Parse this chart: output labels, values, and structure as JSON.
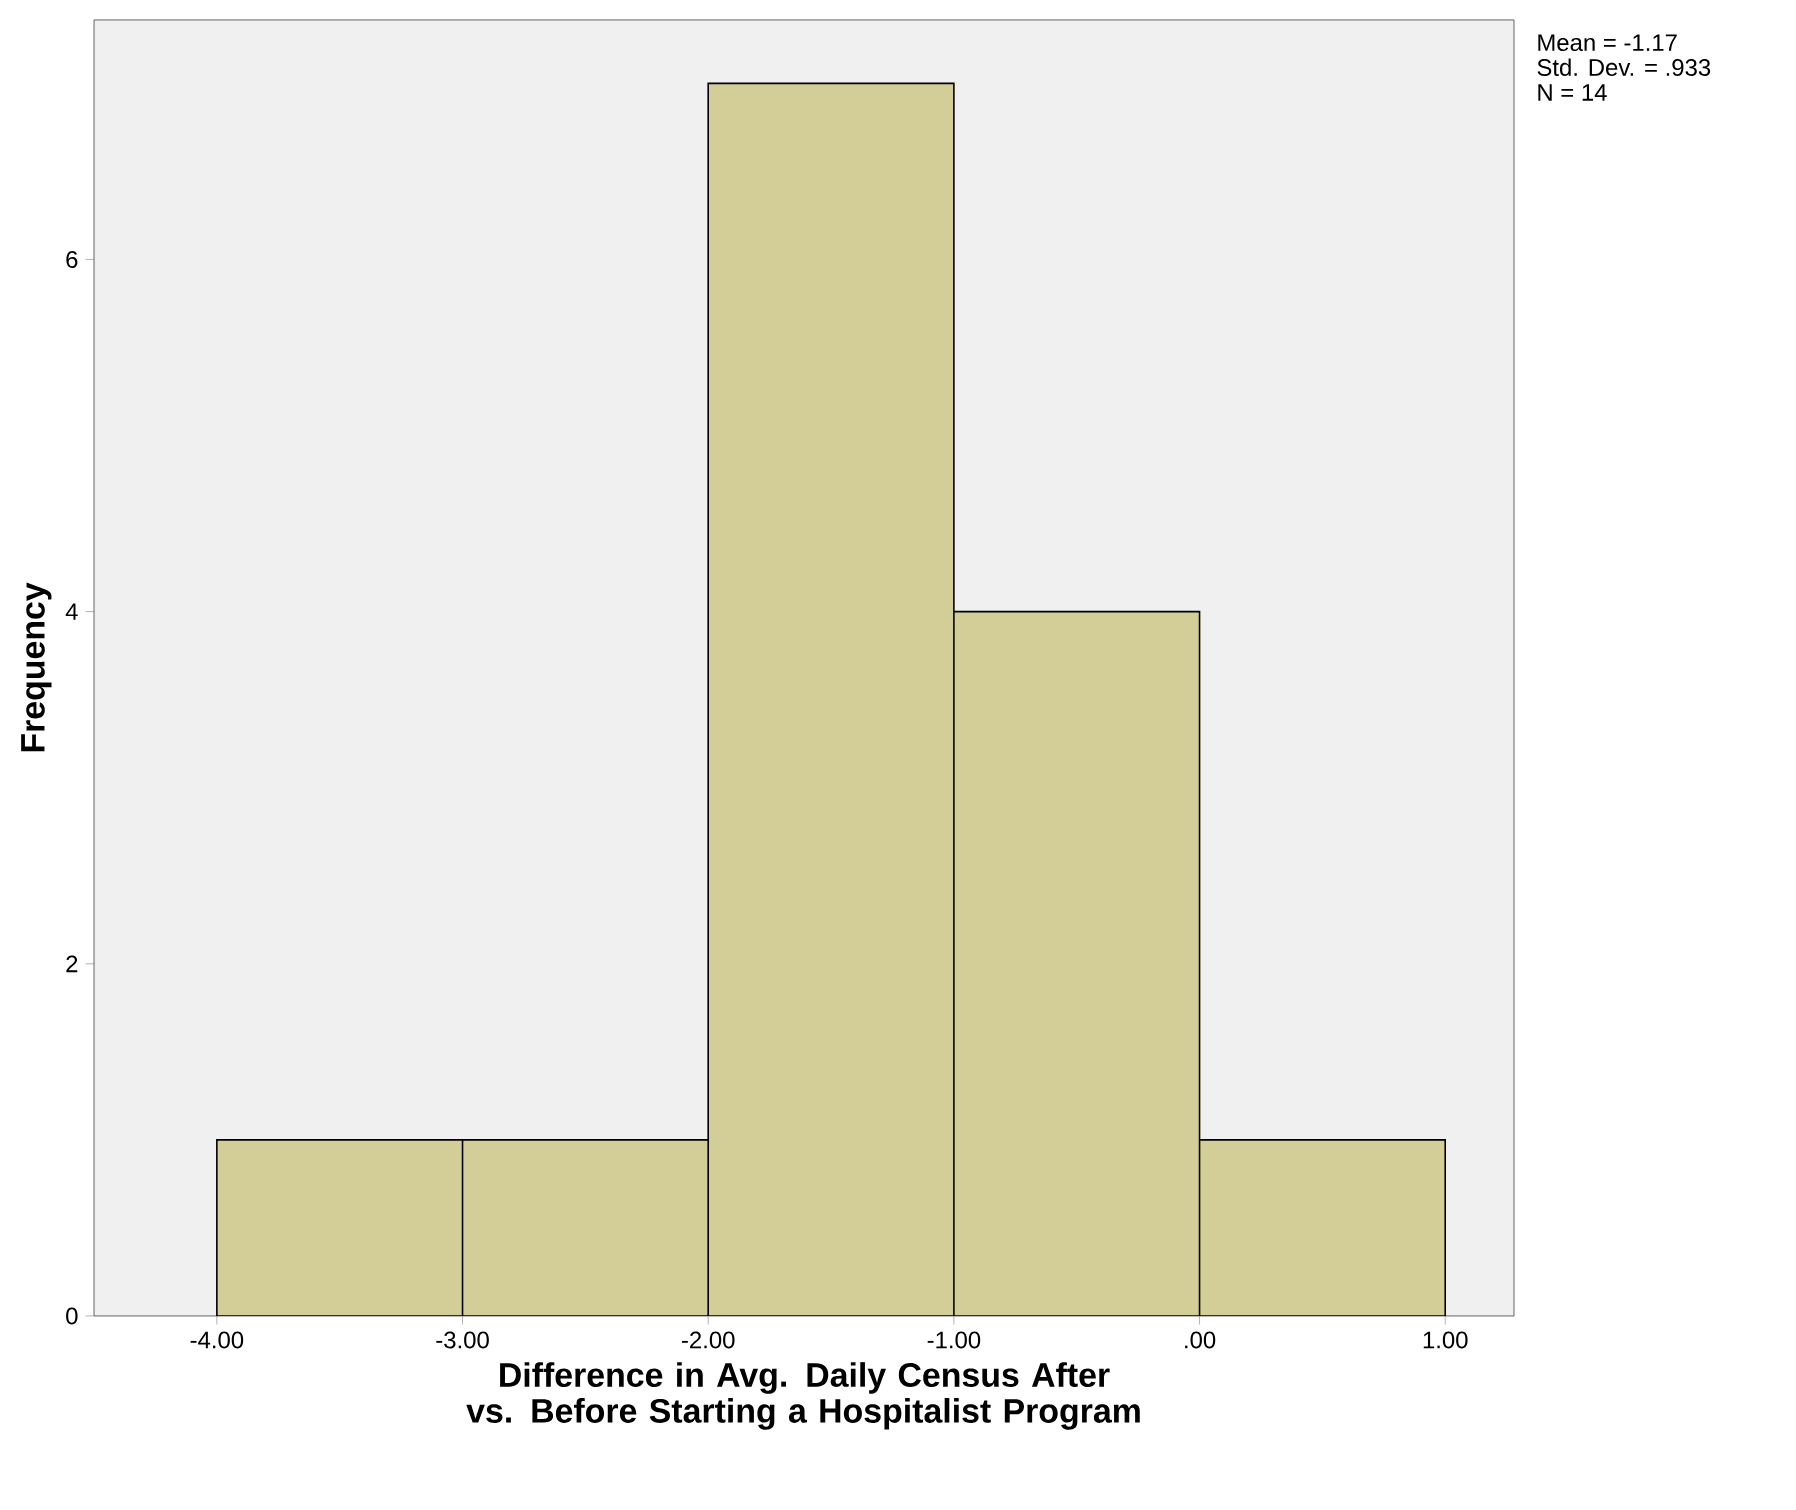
{
  "chart_data": {
    "type": "histogram",
    "xlabel": "Difference in Avg. Daily Census After vs. Before Starting a Hospitalist Program",
    "ylabel": "Frequency",
    "bins": [
      -4,
      -3,
      -2,
      -1,
      0,
      1
    ],
    "values": [
      1,
      1,
      7,
      4,
      1
    ],
    "color": "#d3ce97",
    "xlim": [
      -4.5,
      1.28
    ],
    "ylim": [
      0,
      7.36
    ],
    "xticks": [
      {
        "value": -4,
        "label": "-4.00"
      },
      {
        "value": -3,
        "label": "-3.00"
      },
      {
        "value": -2,
        "label": "-2.00"
      },
      {
        "value": -1,
        "label": "-1.00"
      },
      {
        "value": 0,
        "label": ".00"
      },
      {
        "value": 1,
        "label": "1.00"
      }
    ],
    "yticks": [
      0,
      2,
      4,
      6
    ],
    "annotations": [
      "Mean = -1.17",
      "Std. Dev. = .933",
      "N = 14"
    ]
  }
}
